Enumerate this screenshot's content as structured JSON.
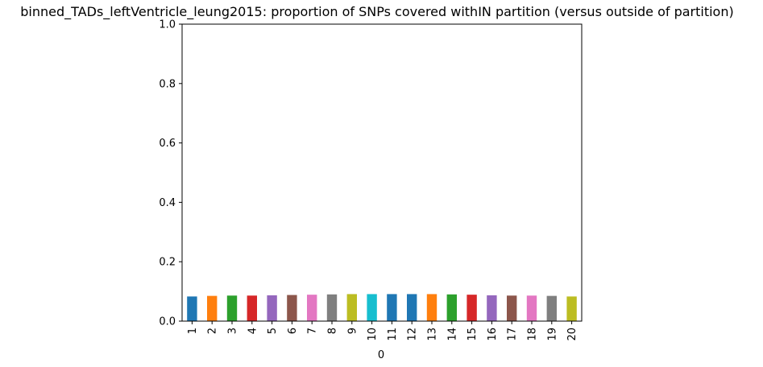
{
  "chart_data": {
    "type": "bar",
    "title": "binned_TADs_leftVentricle_leung2015: proportion of SNPs covered withIN partition (versus outside of partition)",
    "xlabel": "0",
    "ylabel": "",
    "ylim": [
      0,
      1
    ],
    "yticks": [
      "0.0",
      "0.2",
      "0.4",
      "0.6",
      "0.8",
      "1.0"
    ],
    "categories": [
      "1",
      "2",
      "3",
      "4",
      "5",
      "6",
      "7",
      "8",
      "9",
      "10",
      "11",
      "12",
      "13",
      "14",
      "15",
      "16",
      "17",
      "18",
      "19",
      "20"
    ],
    "values": [
      0.083,
      0.085,
      0.086,
      0.086,
      0.087,
      0.088,
      0.089,
      0.09,
      0.091,
      0.091,
      0.091,
      0.091,
      0.091,
      0.09,
      0.089,
      0.087,
      0.086,
      0.086,
      0.085,
      0.083
    ],
    "colors": [
      "#1f77b4",
      "#ff7f0e",
      "#2ca02c",
      "#d62728",
      "#9467bd",
      "#8c564b",
      "#e377c2",
      "#7f7f7f",
      "#bcbd22",
      "#17becf",
      "#1f77b4",
      "#1f77b4",
      "#ff7f0e",
      "#2ca02c",
      "#d62728",
      "#9467bd",
      "#8c564b",
      "#e377c2",
      "#7f7f7f",
      "#bcbd22"
    ],
    "grid": false,
    "legend": "none"
  }
}
